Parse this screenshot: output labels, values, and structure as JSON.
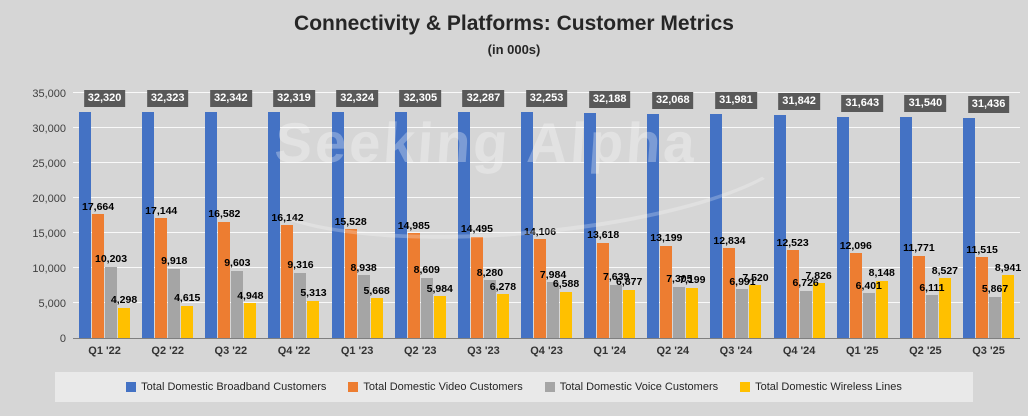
{
  "chart_data": {
    "type": "bar",
    "title": "Connectivity & Platforms: Customer Metrics",
    "subtitle": "(in 000s)",
    "watermark": "Seeking Alpha",
    "categories": [
      "Q1 '22",
      "Q2 '22",
      "Q3 '22",
      "Q4 '22",
      "Q1 '23",
      "Q2 '23",
      "Q3 '23",
      "Q4 '23",
      "Q1 '24",
      "Q2 '24",
      "Q3 '24",
      "Q4 '24",
      "Q1 '25",
      "Q2 '25",
      "Q3 '25"
    ],
    "series": [
      {
        "key": "broadband",
        "name": "Total Domestic Broadband Customers",
        "color": "#4472C4",
        "label_style": "badge",
        "badge_bg": "#595959",
        "badge_text": "#FFFFFF",
        "values": [
          32320,
          32323,
          32342,
          32319,
          32324,
          32305,
          32287,
          32253,
          32188,
          32068,
          31981,
          31842,
          31643,
          31540,
          31436
        ]
      },
      {
        "key": "video",
        "name": "Total Domestic Video Customers",
        "color": "#ED7D31",
        "label_style": "plain",
        "values": [
          17664,
          17144,
          16582,
          16142,
          15528,
          14985,
          14495,
          14106,
          13618,
          13199,
          12834,
          12523,
          12096,
          11771,
          11515
        ]
      },
      {
        "key": "voice",
        "name": "Total Domestic Voice Customers",
        "color": "#A5A5A5",
        "label_style": "plain",
        "values": [
          10203,
          9918,
          9603,
          9316,
          8938,
          8609,
          8280,
          7984,
          7639,
          7305,
          6991,
          6726,
          6401,
          6111,
          5867
        ]
      },
      {
        "key": "wireless",
        "name": "Total Domestic Wireless Lines",
        "color": "#FFC000",
        "label_style": "plain",
        "values": [
          4298,
          4615,
          4948,
          5313,
          5668,
          5984,
          6278,
          6588,
          6877,
          7199,
          7520,
          7826,
          8148,
          8527,
          8941
        ]
      }
    ],
    "ylim": [
      0,
      35000
    ],
    "yticks": [
      "0",
      "5,000",
      "10,000",
      "15,000",
      "20,000",
      "25,000",
      "30,000",
      "35,000"
    ],
    "grid": true,
    "legend_position": "bottom"
  }
}
